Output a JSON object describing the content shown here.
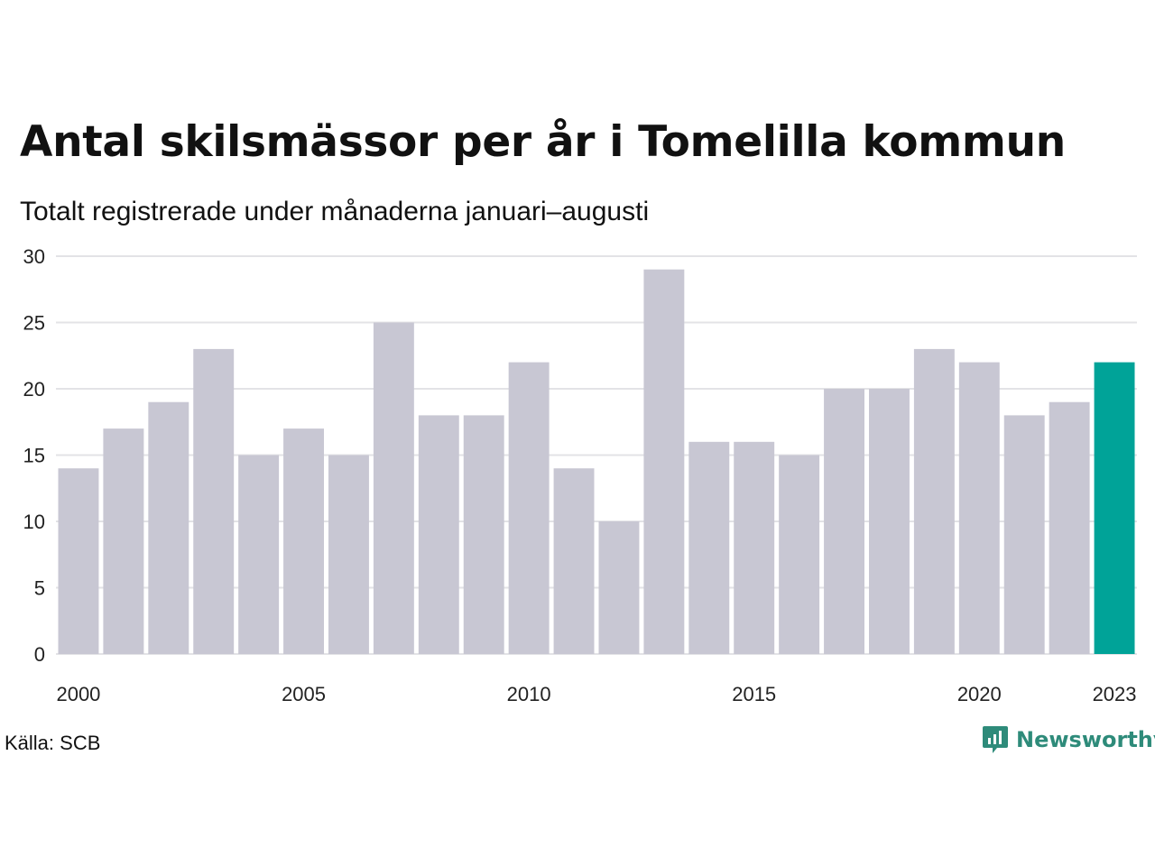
{
  "title": "Antal skilsmässor per år i Tomelilla kommun",
  "subtitle": "Totalt registrerade under månaderna januari–augusti",
  "source": "Källa: SCB",
  "brand": {
    "name": "Newsworthy",
    "icon": "newsworthy-logo-icon",
    "color": "#2e8b7a"
  },
  "chart_data": {
    "type": "bar",
    "title": "Antal skilsmässor per år i Tomelilla kommun",
    "subtitle": "Totalt registrerade under månaderna januari–augusti",
    "categories": [
      "2000",
      "2001",
      "2002",
      "2003",
      "2004",
      "2005",
      "2006",
      "2007",
      "2008",
      "2009",
      "2010",
      "2011",
      "2012",
      "2013",
      "2014",
      "2015",
      "2016",
      "2017",
      "2018",
      "2019",
      "2020",
      "2021",
      "2022",
      "2023"
    ],
    "values": [
      14,
      17,
      19,
      23,
      15,
      17,
      15,
      25,
      18,
      18,
      22,
      14,
      10,
      29,
      16,
      16,
      15,
      20,
      20,
      23,
      22,
      18,
      19,
      22
    ],
    "ylim": [
      0,
      30
    ],
    "yticks": [
      0,
      5,
      10,
      15,
      20,
      25,
      30
    ],
    "xticks_shown": [
      "2000",
      "2005",
      "2010",
      "2015",
      "2020",
      "2023"
    ],
    "grid": true,
    "colors": {
      "default": "#c8c7d3",
      "highlight": "#00a398"
    },
    "highlight_category": "2023"
  }
}
